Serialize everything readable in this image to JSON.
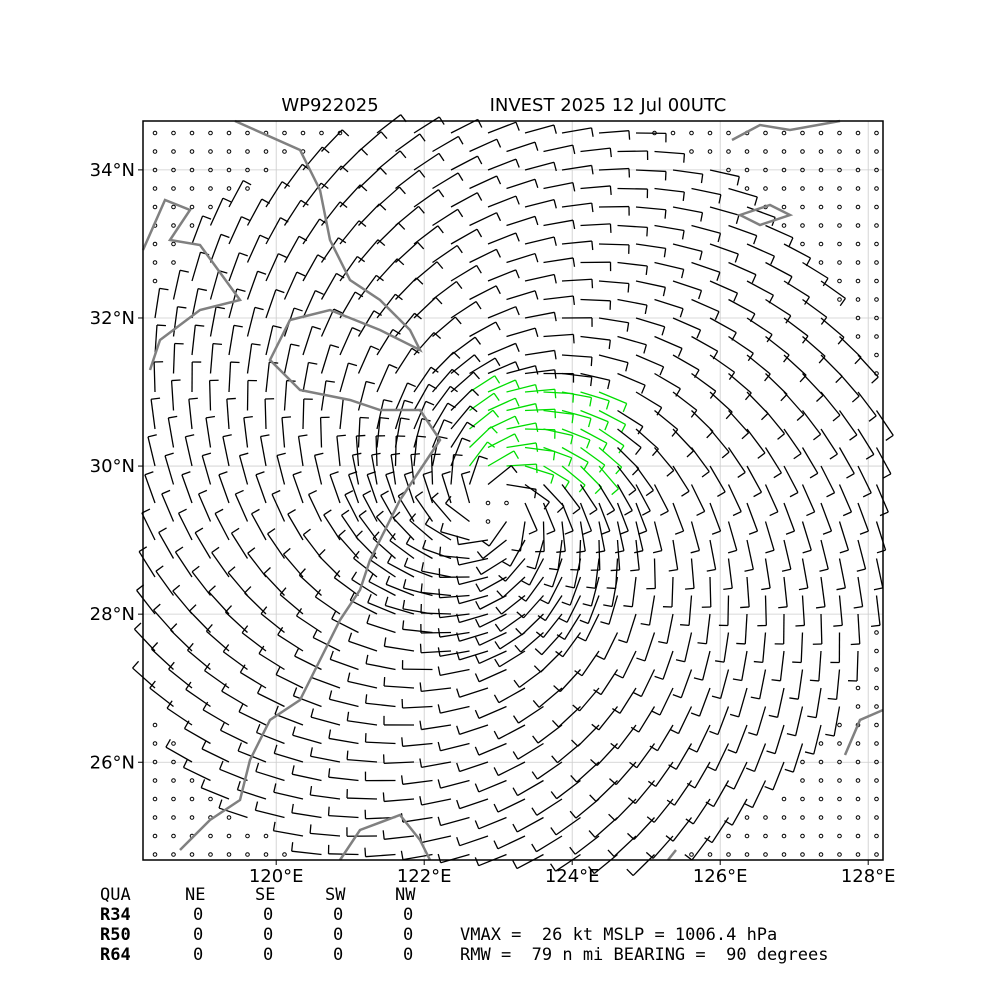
{
  "map": {
    "title_left": "WP922025",
    "title_right": "INVEST 2025 12 Jul 00UTC",
    "xlim": [
      118.2,
      128.2
    ],
    "ylim": [
      24.68,
      34.66
    ],
    "xticks": [
      {
        "value": 120,
        "label": "120°E"
      },
      {
        "value": 122,
        "label": "122°E"
      },
      {
        "value": 124,
        "label": "124°E"
      },
      {
        "value": 126,
        "label": "126°E"
      },
      {
        "value": 128,
        "label": "128°E"
      }
    ],
    "yticks": [
      {
        "value": 26,
        "label": "26°N"
      },
      {
        "value": 28,
        "label": "28°N"
      },
      {
        "value": 30,
        "label": "30°N"
      },
      {
        "value": 32,
        "label": "32°N"
      },
      {
        "value": 34,
        "label": "34°N"
      }
    ],
    "grid": true
  },
  "table": {
    "header": [
      "QUA",
      "NE",
      "SE",
      "SW",
      "NW"
    ],
    "rows": [
      [
        "R34",
        "0",
        "0",
        "0",
        "0"
      ],
      [
        "R50",
        "0",
        "0",
        "0",
        "0"
      ],
      [
        "R64",
        "0",
        "0",
        "0",
        "0"
      ]
    ]
  },
  "info": [
    "VMAX =  26 kt MSLP = 1006.4 hPa",
    "RMW =  79 n mi BEARING =  90 degrees"
  ]
}
